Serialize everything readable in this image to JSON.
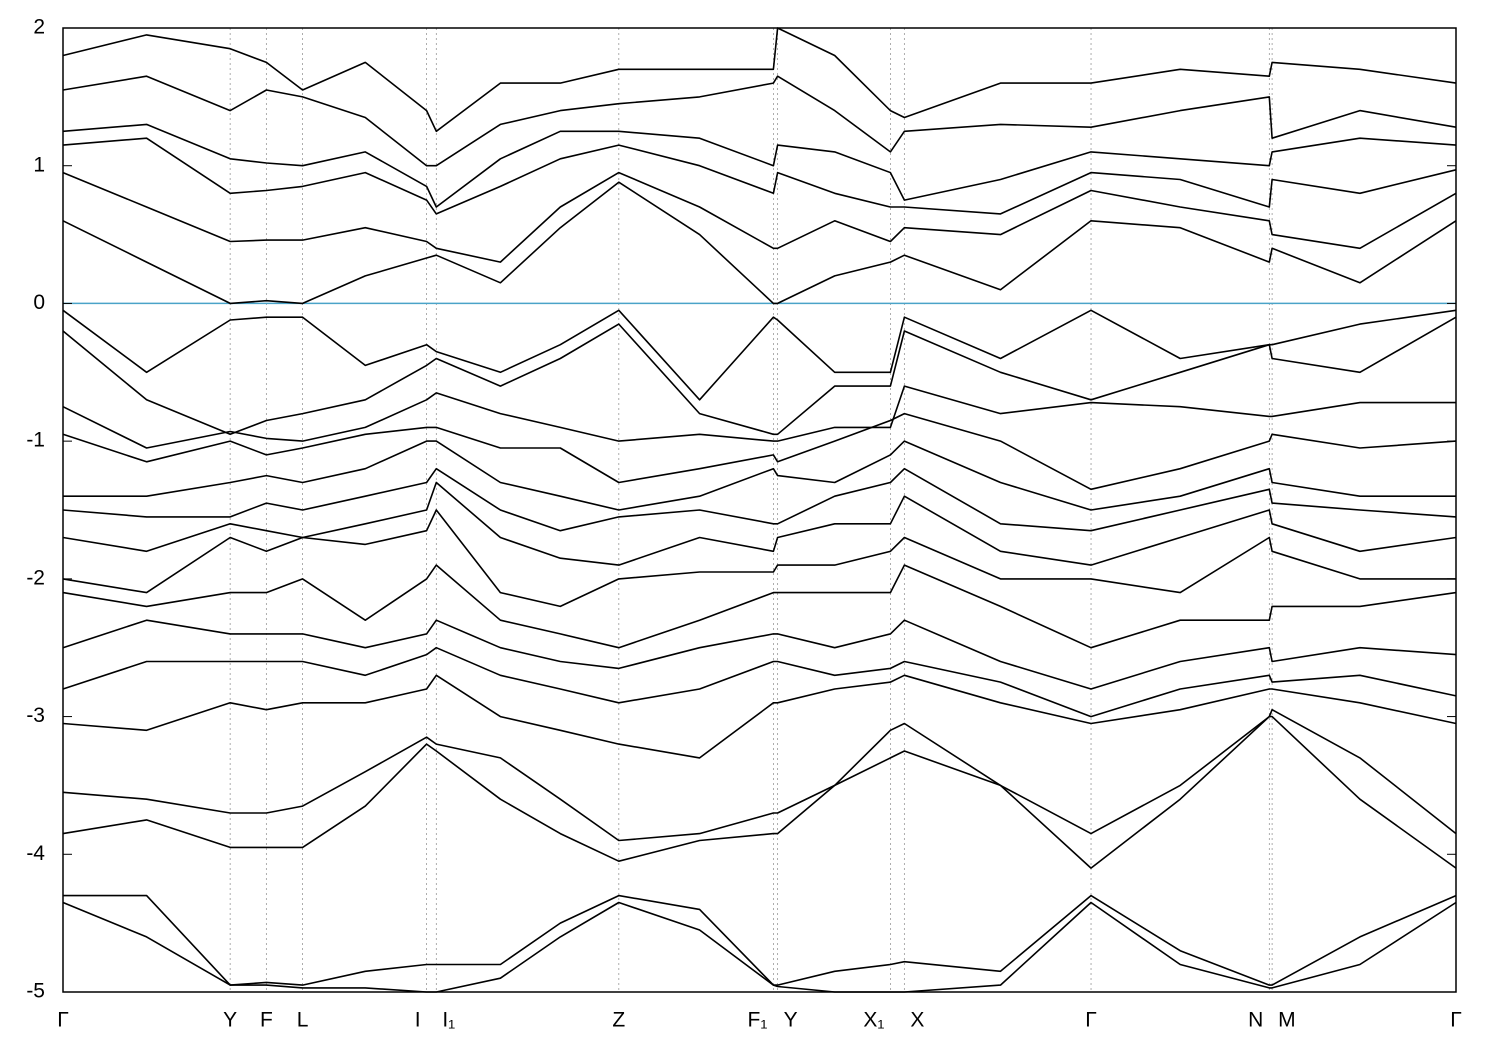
{
  "chart_data": {
    "type": "line",
    "x": [
      0,
      0.06,
      0.12,
      0.146,
      0.172,
      0.217,
      0.261,
      0.268,
      0.314,
      0.357,
      0.399,
      0.457,
      0.51,
      0.513,
      0.554,
      0.594,
      0.604,
      0.673,
      0.738,
      0.802,
      0.866,
      0.868,
      0.931,
      1
    ],
    "xlim": [
      0,
      1
    ],
    "xticks": [
      {
        "value": 0,
        "label": "Γ"
      },
      {
        "value": 0.12,
        "label": "Y"
      },
      {
        "value": 0.146,
        "label": "F"
      },
      {
        "value": 0.172,
        "label": "L"
      },
      {
        "value": 0.261,
        "label": "I"
      },
      {
        "value": 0.268,
        "label": "I₁"
      },
      {
        "value": 0.399,
        "label": "Z"
      },
      {
        "value": 0.51,
        "label": "F₁"
      },
      {
        "value": 0.513,
        "label": "Y"
      },
      {
        "value": 0.594,
        "label": "X₁"
      },
      {
        "value": 0.604,
        "label": "X"
      },
      {
        "value": 0.738,
        "label": "Γ"
      },
      {
        "value": 0.866,
        "label": "N"
      },
      {
        "value": 0.868,
        "label": "M"
      },
      {
        "value": 1,
        "label": "Γ"
      }
    ],
    "ylim": [
      -5,
      2
    ],
    "yticks": [
      -5,
      -4,
      -3,
      -2,
      -1,
      0,
      1,
      2
    ],
    "xgrid": true,
    "hlines": [
      {
        "y": 0,
        "color": "#4aa3c8"
      }
    ],
    "series": [
      {
        "color": "#000000",
        "values": [
          0.6,
          0.3,
          0.0,
          0.02,
          0.0,
          0.2,
          0.33,
          0.35,
          0.15,
          0.55,
          0.88,
          0.5,
          0.0,
          0.0,
          0.2,
          0.3,
          0.35,
          0.1,
          0.6,
          0.55,
          0.3,
          0.4,
          0.15,
          0.6
        ]
      },
      {
        "color": "#000000",
        "values": [
          0.95,
          0.7,
          0.45,
          0.46,
          0.46,
          0.55,
          0.45,
          0.4,
          0.3,
          0.7,
          0.95,
          0.7,
          0.4,
          0.4,
          0.6,
          0.45,
          0.55,
          0.5,
          0.82,
          0.7,
          0.6,
          0.5,
          0.4,
          0.8
        ]
      },
      {
        "color": "#000000",
        "values": [
          1.15,
          1.2,
          0.8,
          0.82,
          0.85,
          0.95,
          0.75,
          0.65,
          0.85,
          1.05,
          1.15,
          1.0,
          0.8,
          0.95,
          0.8,
          0.7,
          0.7,
          0.65,
          0.95,
          0.9,
          0.7,
          0.9,
          0.8,
          0.97
        ]
      },
      {
        "color": "#000000",
        "values": [
          1.25,
          1.3,
          1.05,
          1.02,
          1.0,
          1.1,
          0.85,
          0.7,
          1.05,
          1.25,
          1.25,
          1.2,
          1.0,
          1.15,
          1.1,
          0.95,
          0.75,
          0.9,
          1.1,
          1.05,
          1.0,
          1.1,
          1.2,
          1.15
        ]
      },
      {
        "color": "#000000",
        "values": [
          1.55,
          1.65,
          1.4,
          1.55,
          1.5,
          1.35,
          1.0,
          1.0,
          1.3,
          1.4,
          1.45,
          1.5,
          1.6,
          1.65,
          1.4,
          1.1,
          1.25,
          1.3,
          1.28,
          1.4,
          1.5,
          1.2,
          1.4,
          1.28
        ]
      },
      {
        "color": "#000000",
        "values": [
          1.8,
          1.95,
          1.85,
          1.75,
          1.55,
          1.75,
          1.4,
          1.25,
          1.6,
          1.6,
          1.7,
          1.7,
          1.7,
          2.0,
          1.8,
          1.4,
          1.35,
          1.6,
          1.6,
          1.7,
          1.65,
          1.75,
          1.7,
          1.6
        ]
      },
      {
        "color": "#000000",
        "values": [
          -0.05,
          -0.5,
          -0.12,
          -0.1,
          -0.1,
          -0.45,
          -0.3,
          -0.35,
          -0.5,
          -0.3,
          -0.05,
          -0.7,
          -0.1,
          -0.12,
          -0.5,
          -0.5,
          -0.1,
          -0.4,
          -0.05,
          -0.4,
          -0.3,
          -0.3,
          -0.15,
          -0.05
        ]
      },
      {
        "color": "#000000",
        "values": [
          -0.2,
          -0.7,
          -0.95,
          -0.85,
          -0.8,
          -0.7,
          -0.45,
          -0.4,
          -0.6,
          -0.4,
          -0.15,
          -0.8,
          -0.95,
          -0.95,
          -0.6,
          -0.6,
          -0.2,
          -0.5,
          -0.7,
          -0.5,
          -0.3,
          -0.4,
          -0.5,
          -0.1
        ]
      },
      {
        "color": "#000000",
        "values": [
          -0.75,
          -1.05,
          -0.93,
          -0.98,
          -1.0,
          -0.9,
          -0.7,
          -0.65,
          -0.8,
          -0.9,
          -1.0,
          -0.95,
          -1.0,
          -1.0,
          -0.9,
          -0.9,
          -0.6,
          -0.8,
          -0.72,
          -0.75,
          -0.82,
          -0.82,
          -0.72,
          -0.72
        ]
      },
      {
        "color": "#000000",
        "values": [
          -0.95,
          -1.15,
          -1.0,
          -1.1,
          -1.05,
          -0.95,
          -0.9,
          -0.9,
          -1.05,
          -1.05,
          -1.3,
          -1.2,
          -1.1,
          -1.15,
          -1.0,
          -0.85,
          -0.8,
          -1.0,
          -1.35,
          -1.2,
          -1.0,
          -0.95,
          -1.05,
          -1.0
        ]
      },
      {
        "color": "#000000",
        "values": [
          -1.4,
          -1.4,
          -1.3,
          -1.25,
          -1.3,
          -1.2,
          -1.0,
          -1.0,
          -1.3,
          -1.4,
          -1.5,
          -1.4,
          -1.2,
          -1.25,
          -1.3,
          -1.1,
          -1.0,
          -1.3,
          -1.5,
          -1.4,
          -1.2,
          -1.3,
          -1.4,
          -1.4
        ]
      },
      {
        "color": "#000000",
        "values": [
          -1.5,
          -1.55,
          -1.55,
          -1.45,
          -1.5,
          -1.4,
          -1.3,
          -1.2,
          -1.5,
          -1.65,
          -1.55,
          -1.5,
          -1.6,
          -1.6,
          -1.4,
          -1.3,
          -1.2,
          -1.6,
          -1.65,
          -1.5,
          -1.35,
          -1.45,
          -1.5,
          -1.55
        ]
      },
      {
        "color": "#000000",
        "values": [
          -1.7,
          -1.8,
          -1.6,
          -1.65,
          -1.7,
          -1.6,
          -1.5,
          -1.3,
          -1.7,
          -1.85,
          -1.9,
          -1.7,
          -1.8,
          -1.7,
          -1.6,
          -1.6,
          -1.4,
          -1.8,
          -1.9,
          -1.7,
          -1.5,
          -1.6,
          -1.8,
          -1.7
        ]
      },
      {
        "color": "#000000",
        "values": [
          -2.0,
          -2.1,
          -1.7,
          -1.8,
          -1.7,
          -1.75,
          -1.65,
          -1.5,
          -2.1,
          -2.2,
          -2.0,
          -1.95,
          -1.95,
          -1.9,
          -1.9,
          -1.8,
          -1.7,
          -2.0,
          -2.0,
          -2.1,
          -1.7,
          -1.8,
          -2.0,
          -2.0
        ]
      },
      {
        "color": "#000000",
        "values": [
          -2.1,
          -2.2,
          -2.1,
          -2.1,
          -2.0,
          -2.3,
          -2.0,
          -1.9,
          -2.3,
          -2.4,
          -2.5,
          -2.3,
          -2.1,
          -2.1,
          -2.1,
          -2.1,
          -1.9,
          -2.2,
          -2.5,
          -2.3,
          -2.3,
          -2.2,
          -2.2,
          -2.1
        ]
      },
      {
        "color": "#000000",
        "values": [
          -2.5,
          -2.3,
          -2.4,
          -2.4,
          -2.4,
          -2.5,
          -2.4,
          -2.3,
          -2.5,
          -2.6,
          -2.65,
          -2.5,
          -2.4,
          -2.4,
          -2.5,
          -2.4,
          -2.3,
          -2.6,
          -2.8,
          -2.6,
          -2.5,
          -2.6,
          -2.5,
          -2.55
        ]
      },
      {
        "color": "#000000",
        "values": [
          -2.8,
          -2.6,
          -2.6,
          -2.6,
          -2.6,
          -2.7,
          -2.55,
          -2.5,
          -2.7,
          -2.8,
          -2.9,
          -2.8,
          -2.6,
          -2.6,
          -2.7,
          -2.65,
          -2.6,
          -2.75,
          -3.0,
          -2.8,
          -2.7,
          -2.75,
          -2.7,
          -2.85
        ]
      },
      {
        "color": "#000000",
        "values": [
          -3.05,
          -3.1,
          -2.9,
          -2.95,
          -2.9,
          -2.9,
          -2.8,
          -2.7,
          -3.0,
          -3.1,
          -3.2,
          -3.3,
          -2.9,
          -2.9,
          -2.8,
          -2.75,
          -2.7,
          -2.9,
          -3.05,
          -2.95,
          -2.8,
          -2.8,
          -2.9,
          -3.05
        ]
      },
      {
        "color": "#000000",
        "values": [
          -3.55,
          -3.6,
          -3.7,
          -3.7,
          -3.65,
          -3.4,
          -3.15,
          -3.2,
          -3.3,
          -3.6,
          -3.9,
          -3.85,
          -3.7,
          -3.7,
          -3.5,
          -3.3,
          -3.25,
          -3.5,
          -3.85,
          -3.5,
          -3.0,
          -2.95,
          -3.3,
          -3.85
        ]
      },
      {
        "color": "#000000",
        "values": [
          -3.85,
          -3.75,
          -3.95,
          -3.95,
          -3.95,
          -3.65,
          -3.2,
          -3.25,
          -3.6,
          -3.85,
          -4.05,
          -3.9,
          -3.85,
          -3.85,
          -3.5,
          -3.1,
          -3.05,
          -3.5,
          -4.1,
          -3.6,
          -3.0,
          -3.0,
          -3.6,
          -4.1
        ]
      },
      {
        "color": "#000000",
        "values": [
          -4.3,
          -4.3,
          -4.95,
          -4.93,
          -4.95,
          -4.85,
          -4.8,
          -4.8,
          -4.8,
          -4.5,
          -4.3,
          -4.4,
          -4.95,
          -4.95,
          -4.85,
          -4.8,
          -4.78,
          -4.85,
          -4.3,
          -4.7,
          -4.95,
          -4.95,
          -4.6,
          -4.3
        ]
      },
      {
        "color": "#000000",
        "values": [
          -4.35,
          -4.6,
          -4.95,
          -4.95,
          -4.97,
          -4.97,
          -5.0,
          -5.0,
          -4.9,
          -4.6,
          -4.35,
          -4.55,
          -4.95,
          -4.96,
          -5.0,
          -5.0,
          -5.0,
          -4.95,
          -4.35,
          -4.8,
          -4.97,
          -4.97,
          -4.8,
          -4.35
        ]
      }
    ]
  }
}
